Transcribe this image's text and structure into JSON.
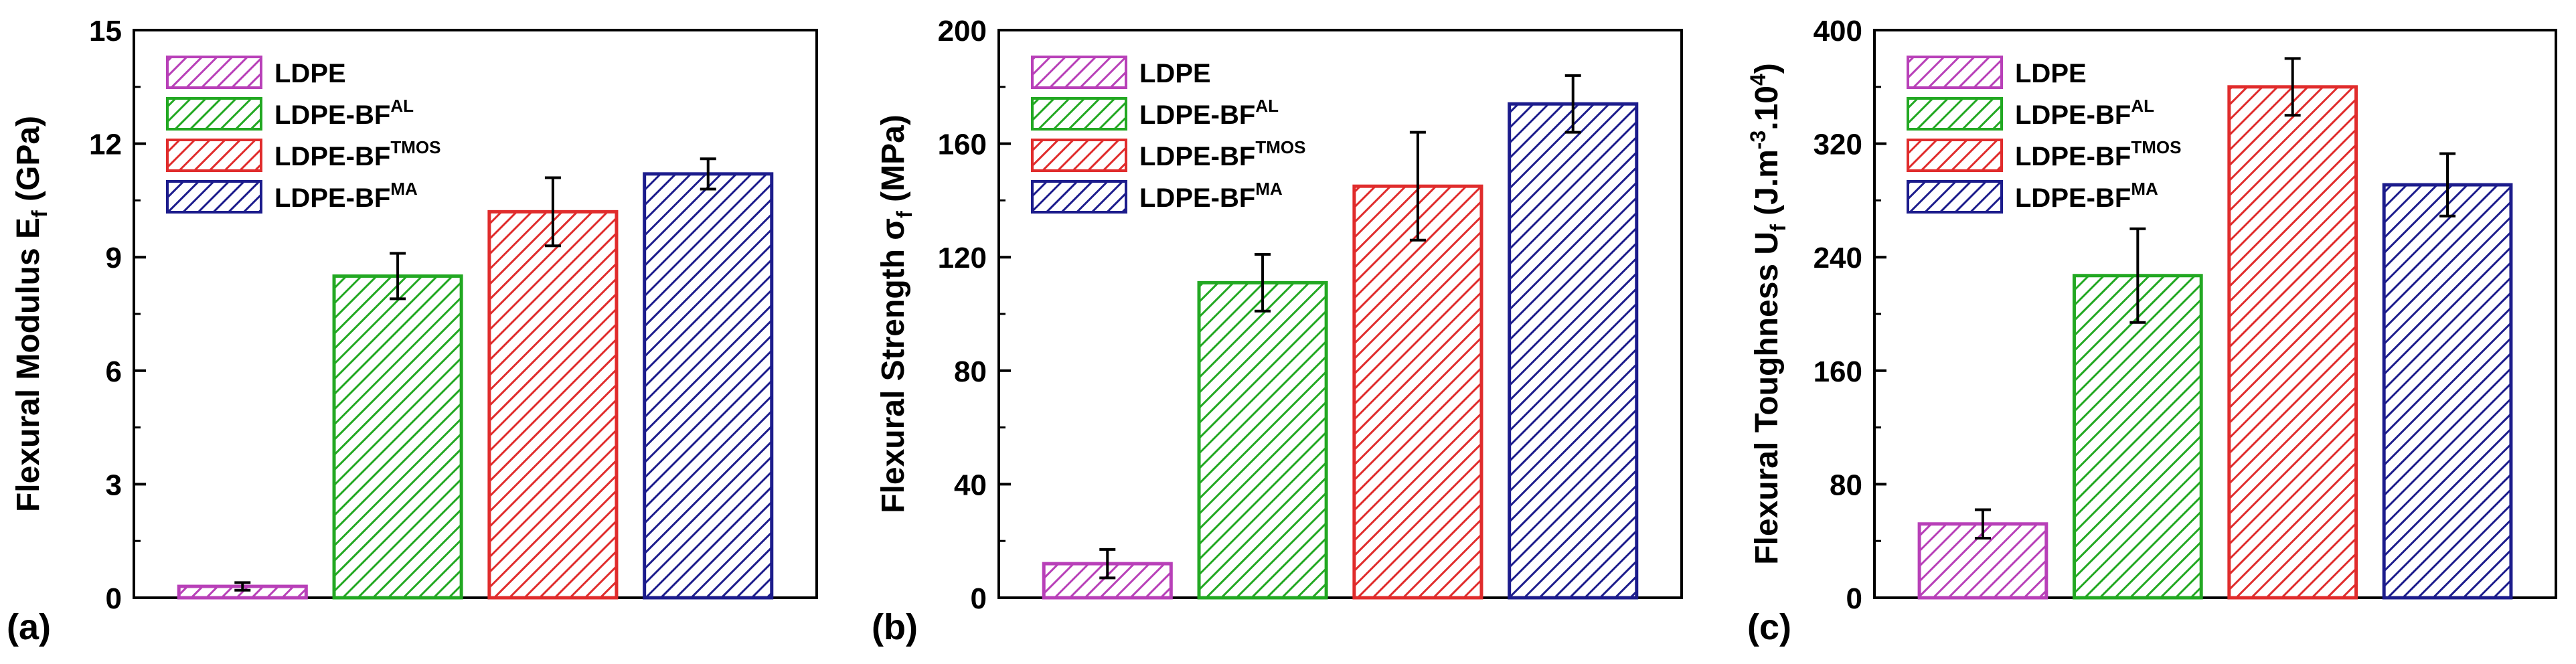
{
  "colors": {
    "LDPE": "#b840b8",
    "LDPE-BF_AL": "#22a822",
    "LDPE-BF_TMOS": "#e02c2c",
    "LDPE-BF_MA": "#1c1c8c"
  },
  "chart_data": [
    {
      "type": "bar",
      "panel_label": "(a)",
      "ylabel": "Flexural Modulus E",
      "ylabel_sub": "f",
      "ylabel_suffix": " (GPa)",
      "ylim": [
        0,
        15
      ],
      "yticks": [
        0,
        3,
        6,
        9,
        12,
        15
      ],
      "categories": [
        "LDPE",
        "LDPE-BF",
        "LDPE-BF",
        "LDPE-BF"
      ],
      "category_sup": [
        "",
        "AL",
        "TMOS",
        "MA"
      ],
      "values": [
        0.3,
        8.5,
        10.2,
        11.2
      ],
      "errors": [
        0.1,
        0.6,
        0.9,
        0.4
      ],
      "legend_position": "top-left"
    },
    {
      "type": "bar",
      "panel_label": "(b)",
      "ylabel": "Flexural Strength σ",
      "ylabel_sub": "f",
      "ylabel_suffix": " (MPa)",
      "ylim": [
        0,
        200
      ],
      "yticks": [
        0,
        40,
        80,
        120,
        160,
        200
      ],
      "categories": [
        "LDPE",
        "LDPE-BF",
        "LDPE-BF",
        "LDPE-BF"
      ],
      "category_sup": [
        "",
        "AL",
        "TMOS",
        "MA"
      ],
      "values": [
        12,
        111,
        145,
        174
      ],
      "errors": [
        5,
        10,
        19,
        10
      ],
      "legend_position": "top-left"
    },
    {
      "type": "bar",
      "panel_label": "(c)",
      "ylabel": "Flexural Toughness U",
      "ylabel_sub": "f",
      "ylabel_suffix": " (J.m",
      "ylabel_sup1": "-3",
      "ylabel_mid": ".10",
      "ylabel_sup2": "4",
      "ylabel_end": ")",
      "ylim": [
        0,
        400
      ],
      "yticks": [
        0,
        80,
        160,
        240,
        320,
        400
      ],
      "categories": [
        "LDPE",
        "LDPE-BF",
        "LDPE-BF",
        "LDPE-BF"
      ],
      "category_sup": [
        "",
        "AL",
        "TMOS",
        "MA"
      ],
      "values": [
        52,
        227,
        360,
        291
      ],
      "errors": [
        10,
        33,
        20,
        22
      ],
      "legend_position": "top-left"
    }
  ]
}
